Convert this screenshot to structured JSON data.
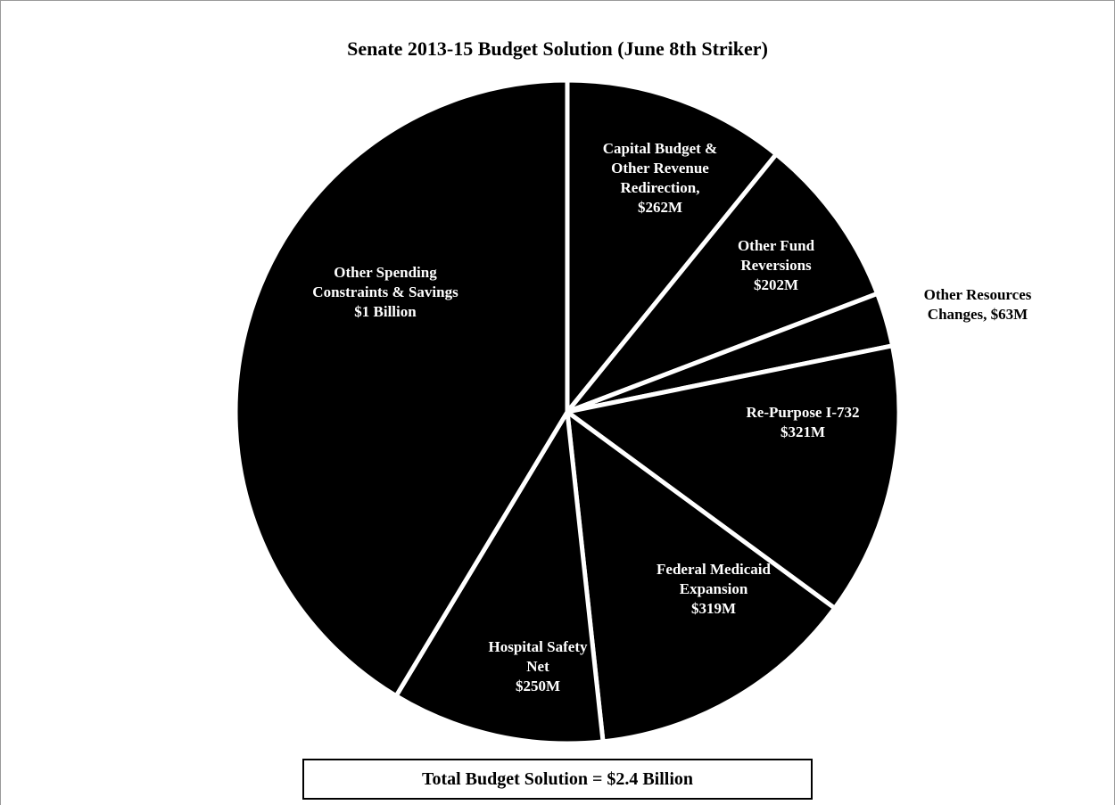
{
  "chart_data": {
    "type": "pie",
    "title": "Senate 2013-15 Budget Solution (June 8th Striker)",
    "unit": "$M",
    "slice_color": "#000000",
    "separator_color": "#ffffff",
    "slices": [
      {
        "name": "Capital Budget & Other Revenue Redirection",
        "value": 262,
        "label_lines": [
          "Capital Budget &",
          "Other Revenue",
          "Redirection,",
          "$262M"
        ]
      },
      {
        "name": "Other Fund Reversions",
        "value": 202,
        "label_lines": [
          "Other Fund",
          "Reversions",
          "$202M"
        ]
      },
      {
        "name": "Other Resources Changes",
        "value": 63,
        "label_lines": [
          "Other Resources",
          "Changes,  $63M"
        ]
      },
      {
        "name": "Re-Purpose I-732",
        "value": 321,
        "label_lines": [
          "Re-Purpose I-732",
          "$321M"
        ]
      },
      {
        "name": "Federal Medicaid Expansion",
        "value": 319,
        "label_lines": [
          "Federal Medicaid",
          "Expansion",
          "$319M"
        ]
      },
      {
        "name": "Hospital Safety Net",
        "value": 250,
        "label_lines": [
          "Hospital Safety",
          "Net",
          "$250M"
        ]
      },
      {
        "name": "Other Spending Constraints & Savings",
        "value": 1000,
        "label_lines": [
          "Other Spending",
          "Constraints & Savings",
          "$1 Billion"
        ]
      }
    ]
  },
  "footer": {
    "total_label": "Total Budget Solution = $2.4 Billion"
  }
}
